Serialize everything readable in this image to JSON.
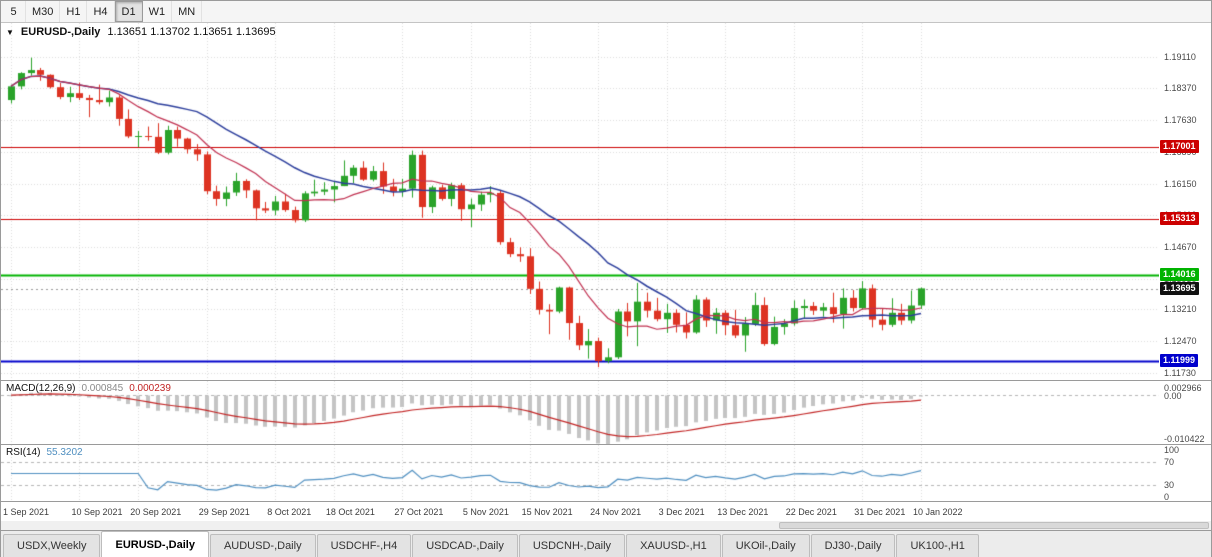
{
  "toolbar": {
    "timeframes": [
      "5",
      "M30",
      "H1",
      "H4",
      "D1",
      "W1",
      "MN"
    ],
    "active": "D1"
  },
  "main_chart": {
    "title_symbol": "EURUSD-,Daily",
    "ohlc_quote": "1.13651 1.13702 1.13651 1.13695"
  },
  "macd_panel": {
    "label": "MACD(12,26,9)",
    "value_main": "0.000845",
    "value_signal": "0.000239",
    "axis": {
      "top": "0.002966",
      "zero": "0.00",
      "bottom": "-0.010422"
    }
  },
  "rsi_panel": {
    "label": "RSI(14)",
    "value": "55.3202",
    "axis_labels": [
      "100",
      "70",
      "30",
      "0"
    ]
  },
  "tabs": [
    {
      "label": "USDX,Weekly",
      "active": false
    },
    {
      "label": "EURUSD-,Daily",
      "active": true
    },
    {
      "label": "AUDUSD-,Daily",
      "active": false
    },
    {
      "label": "USDCHF-,H4",
      "active": false
    },
    {
      "label": "USDCAD-,Daily",
      "active": false
    },
    {
      "label": "USDCNH-,Daily",
      "active": false
    },
    {
      "label": "XAUUSD-,H1",
      "active": false
    },
    {
      "label": "UKOil-,Daily",
      "active": false
    },
    {
      "label": "DJ30-,Daily",
      "active": false
    },
    {
      "label": "UK100-,H1",
      "active": false
    }
  ],
  "chart_data": {
    "type": "candlestick",
    "symbol": "EURUSD",
    "timeframe": "Daily",
    "price_range": [
      1.1156,
      1.199
    ],
    "y_axis_labels": [
      "1.19110",
      "1.18370",
      "1.17630",
      "1.16890",
      "1.16150",
      "1.15410",
      "1.14670",
      "1.13930",
      "1.13210",
      "1.12470",
      "1.11730"
    ],
    "levels": [
      {
        "price": 1.17001,
        "label": "1.17001",
        "color": "#cc0000",
        "width": 1
      },
      {
        "price": 1.15313,
        "label": "1.15313",
        "color": "#cc0000",
        "width": 1
      },
      {
        "price": 1.14016,
        "label": "1.14016",
        "color": "#00b300",
        "width": 2
      },
      {
        "price": 1.11999,
        "label": "1.11999",
        "color": "#0000cc",
        "width": 2
      }
    ],
    "current_price": {
      "value": 1.13695,
      "label": "1.13695",
      "color": "#111111"
    },
    "ma_fast_period": 10,
    "ma_slow_period": 20,
    "macd_range": [
      0.002966,
      -0.010422
    ],
    "rsi_levels": [
      70,
      30
    ],
    "colors": {
      "up": "#2aa32a",
      "down": "#dd3322",
      "ma_fast": "#c03050",
      "ma_slow": "#2c3e9c",
      "macd_hist": "#c4c4c4",
      "macd_signal": "#c22525",
      "rsi_line": "#4f8fc0",
      "grid": "#dcdcdc"
    },
    "date_ticks": [
      {
        "index": 0,
        "label": "1 Sep 2021"
      },
      {
        "index": 7,
        "label": "10 Sep 2021"
      },
      {
        "index": 13,
        "label": "20 Sep 2021"
      },
      {
        "index": 20,
        "label": "29 Sep 2021"
      },
      {
        "index": 27,
        "label": "8 Oct 2021"
      },
      {
        "index": 33,
        "label": "18 Oct 2021"
      },
      {
        "index": 40,
        "label": "27 Oct 2021"
      },
      {
        "index": 47,
        "label": "5 Nov 2021"
      },
      {
        "index": 53,
        "label": "15 Nov 2021"
      },
      {
        "index": 60,
        "label": "24 Nov 2021"
      },
      {
        "index": 67,
        "label": "3 Dec 2021"
      },
      {
        "index": 73,
        "label": "13 Dec 2021"
      },
      {
        "index": 80,
        "label": "22 Dec 2021"
      },
      {
        "index": 87,
        "label": "31 Dec 2021"
      },
      {
        "index": 93,
        "label": "10 Jan 2022"
      }
    ],
    "candles": [
      [
        1.181,
        1.1846,
        1.1802,
        1.1842
      ],
      [
        1.1842,
        1.1875,
        1.1835,
        1.1873
      ],
      [
        1.1873,
        1.1909,
        1.1867,
        1.188
      ],
      [
        1.188,
        1.1885,
        1.1855,
        1.1869
      ],
      [
        1.1869,
        1.187,
        1.1837,
        1.184
      ],
      [
        1.184,
        1.185,
        1.1812,
        1.1817
      ],
      [
        1.1817,
        1.1841,
        1.1805,
        1.1826
      ],
      [
        1.1826,
        1.1851,
        1.181,
        1.1815
      ],
      [
        1.1815,
        1.1822,
        1.177,
        1.181
      ],
      [
        1.181,
        1.1846,
        1.18,
        1.1805
      ],
      [
        1.1805,
        1.1832,
        1.1795,
        1.1816
      ],
      [
        1.1816,
        1.1821,
        1.175,
        1.1766
      ],
      [
        1.1766,
        1.1788,
        1.1721,
        1.1725
      ],
      [
        1.1725,
        1.1738,
        1.17,
        1.1726
      ],
      [
        1.1726,
        1.1748,
        1.1715,
        1.1724
      ],
      [
        1.1724,
        1.1756,
        1.1684,
        1.1687
      ],
      [
        1.1687,
        1.175,
        1.1683,
        1.174
      ],
      [
        1.174,
        1.1748,
        1.1701,
        1.172
      ],
      [
        1.172,
        1.1722,
        1.1685,
        1.1695
      ],
      [
        1.1695,
        1.1707,
        1.1668,
        1.1683
      ],
      [
        1.1683,
        1.169,
        1.159,
        1.1597
      ],
      [
        1.1597,
        1.161,
        1.1563,
        1.1579
      ],
      [
        1.1579,
        1.1608,
        1.1562,
        1.1594
      ],
      [
        1.1594,
        1.164,
        1.1586,
        1.1621
      ],
      [
        1.1621,
        1.1625,
        1.1581,
        1.1599
      ],
      [
        1.1599,
        1.1601,
        1.1529,
        1.1557
      ],
      [
        1.1557,
        1.1572,
        1.1546,
        1.1552
      ],
      [
        1.1552,
        1.1586,
        1.1541,
        1.1573
      ],
      [
        1.1573,
        1.1591,
        1.1549,
        1.1553
      ],
      [
        1.1553,
        1.1561,
        1.1524,
        1.1529
      ],
      [
        1.1529,
        1.1597,
        1.1525,
        1.1592
      ],
      [
        1.1592,
        1.1624,
        1.1585,
        1.1596
      ],
      [
        1.1596,
        1.1618,
        1.1588,
        1.1601
      ],
      [
        1.1601,
        1.1621,
        1.1571,
        1.1609
      ],
      [
        1.1609,
        1.1669,
        1.1609,
        1.1633
      ],
      [
        1.1633,
        1.1658,
        1.1616,
        1.1652
      ],
      [
        1.1652,
        1.1667,
        1.1621,
        1.1624
      ],
      [
        1.1624,
        1.1656,
        1.162,
        1.1644
      ],
      [
        1.1644,
        1.1664,
        1.1591,
        1.1608
      ],
      [
        1.1608,
        1.1626,
        1.1585,
        1.1596
      ],
      [
        1.1596,
        1.1626,
        1.1584,
        1.1603
      ],
      [
        1.1603,
        1.1692,
        1.1582,
        1.1682
      ],
      [
        1.1682,
        1.1692,
        1.1535,
        1.156
      ],
      [
        1.156,
        1.161,
        1.1546,
        1.1606
      ],
      [
        1.1606,
        1.1612,
        1.1575,
        1.1579
      ],
      [
        1.1579,
        1.1617,
        1.1562,
        1.1611
      ],
      [
        1.1611,
        1.1616,
        1.1528,
        1.1555
      ],
      [
        1.1555,
        1.158,
        1.1513,
        1.1566
      ],
      [
        1.1566,
        1.1596,
        1.1551,
        1.1589
      ],
      [
        1.1589,
        1.1609,
        1.1571,
        1.1593
      ],
      [
        1.1593,
        1.1599,
        1.1472,
        1.1478
      ],
      [
        1.1478,
        1.1488,
        1.1443,
        1.145
      ],
      [
        1.145,
        1.1466,
        1.1432,
        1.1445
      ],
      [
        1.1445,
        1.1464,
        1.1357,
        1.1369
      ],
      [
        1.1369,
        1.1386,
        1.1309,
        1.132
      ],
      [
        1.132,
        1.1333,
        1.1263,
        1.1316
      ],
      [
        1.1316,
        1.1374,
        1.1312,
        1.1372
      ],
      [
        1.1372,
        1.1374,
        1.125,
        1.1289
      ],
      [
        1.1289,
        1.1306,
        1.1226,
        1.1237
      ],
      [
        1.1237,
        1.1275,
        1.1206,
        1.1247
      ],
      [
        1.1247,
        1.1255,
        1.1186,
        1.12
      ],
      [
        1.12,
        1.123,
        1.1195,
        1.1209
      ],
      [
        1.1209,
        1.1322,
        1.1205,
        1.1316
      ],
      [
        1.1316,
        1.1336,
        1.1258,
        1.1293
      ],
      [
        1.1293,
        1.1383,
        1.1235,
        1.1339
      ],
      [
        1.1339,
        1.136,
        1.1302,
        1.1318
      ],
      [
        1.1318,
        1.1348,
        1.1293,
        1.1298
      ],
      [
        1.1298,
        1.1334,
        1.1266,
        1.1313
      ],
      [
        1.1313,
        1.1321,
        1.1267,
        1.1285
      ],
      [
        1.1285,
        1.1314,
        1.1253,
        1.1267
      ],
      [
        1.1267,
        1.1354,
        1.1264,
        1.1344
      ],
      [
        1.1344,
        1.1349,
        1.128,
        1.1295
      ],
      [
        1.1295,
        1.1324,
        1.1264,
        1.1313
      ],
      [
        1.1313,
        1.1319,
        1.1261,
        1.1284
      ],
      [
        1.1284,
        1.132,
        1.1254,
        1.126
      ],
      [
        1.126,
        1.1303,
        1.1222,
        1.1287
      ],
      [
        1.1287,
        1.136,
        1.1282,
        1.1331
      ],
      [
        1.1331,
        1.1349,
        1.1236,
        1.124
      ],
      [
        1.124,
        1.1304,
        1.1237,
        1.128
      ],
      [
        1.128,
        1.1298,
        1.1262,
        1.1288
      ],
      [
        1.1288,
        1.1342,
        1.1283,
        1.1324
      ],
      [
        1.1324,
        1.1344,
        1.1301,
        1.1329
      ],
      [
        1.1329,
        1.1338,
        1.1308,
        1.1318
      ],
      [
        1.1318,
        1.1336,
        1.1304,
        1.1326
      ],
      [
        1.1326,
        1.136,
        1.129,
        1.131
      ],
      [
        1.131,
        1.137,
        1.1276,
        1.1348
      ],
      [
        1.1348,
        1.1366,
        1.1316,
        1.1324
      ],
      [
        1.1324,
        1.1387,
        1.1321,
        1.137
      ],
      [
        1.137,
        1.1379,
        1.1279,
        1.1297
      ],
      [
        1.1297,
        1.1323,
        1.1272,
        1.1285
      ],
      [
        1.1285,
        1.1347,
        1.128,
        1.1313
      ],
      [
        1.1313,
        1.1334,
        1.1285,
        1.1295
      ],
      [
        1.1295,
        1.1365,
        1.1288,
        1.133
      ],
      [
        1.133,
        1.1372,
        1.1322,
        1.137
      ]
    ]
  }
}
